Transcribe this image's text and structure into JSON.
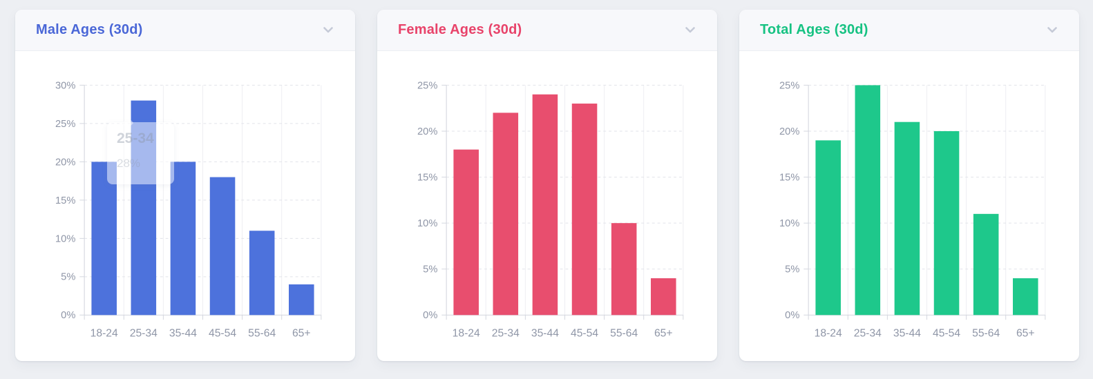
{
  "page": {
    "background": "#edeff3"
  },
  "cards": [
    {
      "title": "Male Ages (30d)",
      "accent": "#4a67d7",
      "header_icon": "chevron-down",
      "tooltip": {
        "label": "25-34",
        "value": "28%"
      }
    },
    {
      "title": "Female Ages (30d)",
      "accent": "#e8436a",
      "header_icon": "chevron-down"
    },
    {
      "title": "Total Ages (30d)",
      "accent": "#16c282",
      "header_icon": "chevron-down"
    }
  ],
  "chart_data": [
    {
      "type": "bar",
      "title": "Male Ages (30d)",
      "categories": [
        "18-24",
        "25-34",
        "35-44",
        "45-54",
        "55-64",
        "65+"
      ],
      "values": [
        20,
        28,
        20,
        18,
        11,
        4
      ],
      "bar_color": "#4d72dc",
      "xlabel": "",
      "ylabel": "",
      "ylim": [
        0,
        30
      ],
      "ytick_step": 5,
      "ylabel_suffix": "%",
      "grid": true,
      "legend": null
    },
    {
      "type": "bar",
      "title": "Female Ages (30d)",
      "categories": [
        "18-24",
        "25-34",
        "35-44",
        "45-54",
        "55-64",
        "65+"
      ],
      "values": [
        18,
        22,
        24,
        23,
        10,
        4
      ],
      "bar_color": "#e84e6e",
      "xlabel": "",
      "ylabel": "",
      "ylim": [
        0,
        25
      ],
      "ytick_step": 5,
      "ylabel_suffix": "%",
      "grid": true,
      "legend": null
    },
    {
      "type": "bar",
      "title": "Total Ages (30d)",
      "categories": [
        "18-24",
        "25-34",
        "35-44",
        "45-54",
        "55-64",
        "65+"
      ],
      "values": [
        19,
        25,
        21,
        20,
        11,
        4
      ],
      "bar_color": "#1ec88b",
      "xlabel": "",
      "ylabel": "",
      "ylim": [
        0,
        25
      ],
      "ytick_step": 5,
      "ylabel_suffix": "%",
      "grid": true,
      "legend": null
    }
  ]
}
